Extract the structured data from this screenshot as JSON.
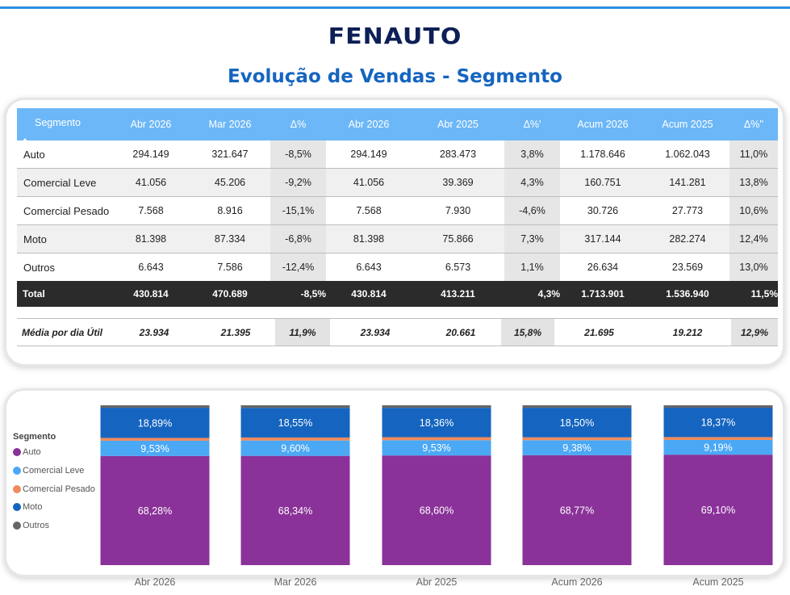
{
  "logo": "FENAUTO",
  "title": "Evolução de Vendas - Segmento",
  "table": {
    "headers": [
      "Segmento",
      "Abr 2026",
      "Mar 2026",
      "Δ%",
      "Abr 2026",
      "Abr 2025",
      "Δ%'",
      "Acum 2026",
      "Acum 2025",
      "Δ%''"
    ],
    "rows": [
      {
        "label": "Auto",
        "values": [
          "294.149",
          "321.647",
          "-8,5%",
          "294.149",
          "283.473",
          "3,8%",
          "1.178.646",
          "1.062.043",
          "11,0%"
        ]
      },
      {
        "label": "Comercial Leve",
        "values": [
          "41.056",
          "45.206",
          "-9,2%",
          "41.056",
          "39.369",
          "4,3%",
          "160.751",
          "141.281",
          "13,8%"
        ]
      },
      {
        "label": "Comercial Pesado",
        "values": [
          "7.568",
          "8.916",
          "-15,1%",
          "7.568",
          "7.930",
          "-4,6%",
          "30.726",
          "27.773",
          "10,6%"
        ]
      },
      {
        "label": "Moto",
        "values": [
          "81.398",
          "87.334",
          "-6,8%",
          "81.398",
          "75.866",
          "7,3%",
          "317.144",
          "282.274",
          "12,4%"
        ]
      },
      {
        "label": "Outros",
        "values": [
          "6.643",
          "7.586",
          "-12,4%",
          "6.643",
          "6.573",
          "1,1%",
          "26.634",
          "23.569",
          "13,0%"
        ]
      }
    ],
    "total": {
      "label": "Total",
      "values": [
        "430.814",
        "470.689",
        "-8,5%",
        "430.814",
        "413.211",
        "4,3%",
        "1.713.901",
        "1.536.940",
        "11,5%"
      ]
    },
    "average": {
      "label": "Média por dia Útil",
      "values": [
        "23.934",
        "21.395",
        "11,9%",
        "23.934",
        "20.661",
        "15,8%",
        "21.695",
        "19.212",
        "12,9%"
      ]
    }
  },
  "legend": {
    "title": "Segmento",
    "items": [
      {
        "name": "Auto",
        "color": "#8a3299"
      },
      {
        "name": "Comercial Leve",
        "color": "#4aa8f5"
      },
      {
        "name": "Comercial Pesado",
        "color": "#f08a5d"
      },
      {
        "name": "Moto",
        "color": "#1565c0"
      },
      {
        "name": "Outros",
        "color": "#666666"
      }
    ]
  },
  "chart_data": {
    "type": "bar",
    "stacked": "100%",
    "categories": [
      "Abr 2026",
      "Mar 2026",
      "Abr 2025",
      "Acum 2026",
      "Acum 2025"
    ],
    "series": [
      {
        "name": "Auto",
        "color": "#8a3299",
        "values": [
          68.28,
          68.34,
          68.6,
          68.77,
          69.1
        ],
        "labels": [
          "68,28%",
          "68,34%",
          "68,60%",
          "68,77%",
          "69,10%"
        ]
      },
      {
        "name": "Comercial Leve",
        "color": "#4aa8f5",
        "values": [
          9.53,
          9.6,
          9.53,
          9.38,
          9.19
        ],
        "labels": [
          "9,53%",
          "9,60%",
          "9,53%",
          "9,38%",
          "9,19%"
        ]
      },
      {
        "name": "Comercial Pesado",
        "color": "#f08a5d",
        "values": [
          1.76,
          1.89,
          1.92,
          1.79,
          1.81
        ],
        "labels": [
          "",
          "",
          "",
          "",
          ""
        ]
      },
      {
        "name": "Moto",
        "color": "#1565c0",
        "values": [
          18.89,
          18.55,
          18.36,
          18.5,
          18.37
        ],
        "labels": [
          "18,89%",
          "18,55%",
          "18,36%",
          "18,50%",
          "18,37%"
        ]
      },
      {
        "name": "Outros",
        "color": "#666666",
        "values": [
          1.54,
          1.61,
          1.59,
          1.55,
          1.53
        ],
        "labels": [
          "",
          "",
          "",
          "",
          ""
        ]
      }
    ]
  }
}
